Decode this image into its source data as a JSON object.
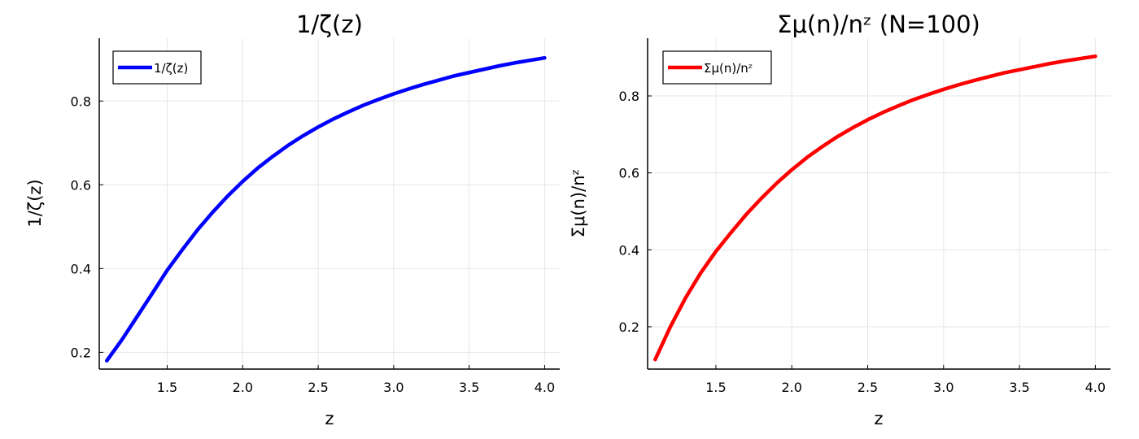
{
  "chart_data": [
    {
      "type": "line",
      "title": "1/ζ(z)",
      "xlabel": "z",
      "ylabel": "1/ζ(z)",
      "xlim": [
        1.05,
        4.1
      ],
      "ylim": [
        0.16,
        0.95
      ],
      "xticks": [
        1.5,
        2.0,
        2.5,
        3.0,
        3.5,
        4.0
      ],
      "xtick_labels": [
        "1.5",
        "2.0",
        "2.5",
        "3.0",
        "3.5",
        "4.0"
      ],
      "yticks": [
        0.2,
        0.4,
        0.6,
        0.8
      ],
      "ytick_labels": [
        "0.2",
        "0.4",
        "0.6",
        "0.8"
      ],
      "grid": true,
      "legend_position": "top-left",
      "series": [
        {
          "name": "1/ζ(z)",
          "color": "#0000ff",
          "x": [
            1.1,
            1.2,
            1.3,
            1.4,
            1.5,
            1.6,
            1.7,
            1.8,
            1.9,
            2.0,
            2.1,
            2.2,
            2.3,
            2.4,
            2.5,
            2.6,
            2.7,
            2.8,
            2.9,
            3.0,
            3.1,
            3.2,
            3.3,
            3.4,
            3.5,
            3.6,
            3.7,
            3.8,
            3.9,
            4.0
          ],
          "y": [
            0.18,
            0.23,
            0.285,
            0.34,
            0.396,
            0.445,
            0.492,
            0.534,
            0.573,
            0.608,
            0.64,
            0.668,
            0.694,
            0.717,
            0.738,
            0.757,
            0.774,
            0.79,
            0.804,
            0.817,
            0.829,
            0.84,
            0.85,
            0.86,
            0.868,
            0.876,
            0.884,
            0.891,
            0.897,
            0.903
          ]
        }
      ]
    },
    {
      "type": "line",
      "title": "Σμ(n)/nᶻ (N=100)",
      "xlabel": "z",
      "ylabel": "Σμ(n)/nᶻ",
      "xlim": [
        1.05,
        4.1
      ],
      "ylim": [
        0.09,
        0.95
      ],
      "xticks": [
        1.5,
        2.0,
        2.5,
        3.0,
        3.5,
        4.0
      ],
      "xtick_labels": [
        "1.5",
        "2.0",
        "2.5",
        "3.0",
        "3.5",
        "4.0"
      ],
      "yticks": [
        0.2,
        0.4,
        0.6,
        0.8
      ],
      "ytick_labels": [
        "0.2",
        "0.4",
        "0.6",
        "0.8"
      ],
      "grid": true,
      "legend_position": "top-left",
      "series": [
        {
          "name": "Σμ(n)/nᶻ",
          "color": "#ff0000",
          "x": [
            1.1,
            1.2,
            1.3,
            1.4,
            1.5,
            1.6,
            1.7,
            1.8,
            1.9,
            2.0,
            2.1,
            2.2,
            2.3,
            2.4,
            2.5,
            2.6,
            2.7,
            2.8,
            2.9,
            3.0,
            3.1,
            3.2,
            3.3,
            3.4,
            3.5,
            3.6,
            3.7,
            3.8,
            3.9,
            4.0
          ],
          "y": [
            0.115,
            0.2,
            0.275,
            0.34,
            0.396,
            0.445,
            0.492,
            0.534,
            0.573,
            0.608,
            0.64,
            0.668,
            0.694,
            0.717,
            0.738,
            0.757,
            0.774,
            0.79,
            0.804,
            0.817,
            0.829,
            0.84,
            0.85,
            0.86,
            0.868,
            0.876,
            0.884,
            0.891,
            0.897,
            0.903
          ]
        }
      ]
    }
  ]
}
